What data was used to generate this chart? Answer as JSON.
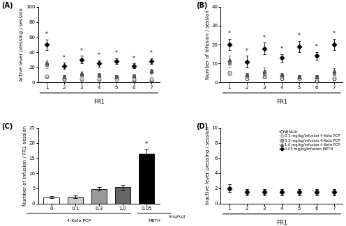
{
  "fr1_sessions": [
    1,
    2,
    3,
    4,
    5,
    6,
    7
  ],
  "panel_A": {
    "ylabel": "Active lever pressing / session",
    "ylim": [
      0,
      100
    ],
    "yticks": [
      0,
      20,
      40,
      60,
      80,
      100
    ],
    "series": [
      {
        "label": "Vehicle",
        "facecolor": "white",
        "edgecolor": "black",
        "linecolor": "black",
        "marker": "o",
        "values": [
          8,
          4,
          4,
          4,
          4,
          3,
          3
        ],
        "errors": [
          1.5,
          0.8,
          0.8,
          0.8,
          0.8,
          0.8,
          0.8
        ],
        "significant": [
          false,
          false,
          false,
          false,
          false,
          false,
          false
        ]
      },
      {
        "label": "0.1 mg/kg/infusion 4-Keto PCP",
        "facecolor": "#cccccc",
        "edgecolor": "#999999",
        "linecolor": "#cccccc",
        "marker": "o",
        "values": [
          9,
          5,
          5,
          5,
          4,
          5,
          5
        ],
        "errors": [
          1.5,
          1,
          1,
          1,
          1,
          1,
          1
        ],
        "significant": [
          false,
          false,
          false,
          false,
          false,
          false,
          false
        ]
      },
      {
        "label": "0.3 mg/kg/infusion 4-Keto PCP",
        "facecolor": "#999999",
        "edgecolor": "#666666",
        "linecolor": "#999999",
        "marker": "s",
        "values": [
          23,
          8,
          10,
          10,
          8,
          9,
          14
        ],
        "errors": [
          4,
          2,
          2,
          2,
          2,
          2,
          3
        ],
        "significant": [
          false,
          false,
          false,
          false,
          false,
          false,
          false
        ]
      },
      {
        "label": "1.0 mg/kg/infusion 4-Keto PCP",
        "facecolor": "#666666",
        "edgecolor": "#333333",
        "linecolor": "#666666",
        "marker": "^",
        "values": [
          26,
          8,
          12,
          10,
          8,
          9,
          15
        ],
        "errors": [
          4,
          2,
          2,
          2,
          2,
          2,
          3
        ],
        "significant": [
          false,
          false,
          false,
          false,
          false,
          false,
          false
        ]
      },
      {
        "label": "0.05 mg/kg/infusion METH",
        "facecolor": "black",
        "edgecolor": "black",
        "linecolor": "black",
        "marker": "D",
        "values": [
          50,
          22,
          30,
          25,
          28,
          22,
          28
        ],
        "errors": [
          7,
          4,
          5,
          4,
          4,
          3,
          4
        ],
        "significant": [
          true,
          true,
          true,
          true,
          true,
          true,
          true
        ]
      }
    ]
  },
  "panel_B": {
    "ylabel": "Number of infusion / session",
    "ylim": [
      0,
      40
    ],
    "yticks": [
      0,
      10,
      20,
      30,
      40
    ],
    "series": [
      {
        "label": "Vehicle",
        "facecolor": "white",
        "edgecolor": "black",
        "linecolor": "black",
        "marker": "o",
        "values": [
          5,
          2,
          3,
          2,
          2,
          1,
          2
        ],
        "errors": [
          1,
          0.5,
          0.5,
          0.5,
          0.5,
          0.3,
          0.5
        ],
        "significant": [
          false,
          false,
          false,
          false,
          false,
          false,
          false
        ]
      },
      {
        "label": "0.1 mg/kg/infusion 4-Keto PCP",
        "facecolor": "#cccccc",
        "edgecolor": "#999999",
        "linecolor": "#cccccc",
        "marker": "o",
        "values": [
          5,
          3,
          4,
          3,
          2,
          2,
          3
        ],
        "errors": [
          1,
          0.8,
          1,
          0.8,
          0.5,
          0.5,
          0.8
        ],
        "significant": [
          false,
          false,
          false,
          false,
          false,
          false,
          false
        ]
      },
      {
        "label": "0.3 mg/kg/infusion 4-Keto PCP",
        "facecolor": "#999999",
        "edgecolor": "#666666",
        "linecolor": "#999999",
        "marker": "s",
        "values": [
          10,
          4,
          5,
          4,
          3,
          3,
          5
        ],
        "errors": [
          2,
          1,
          1.5,
          1,
          0.8,
          0.8,
          1
        ],
        "significant": [
          false,
          false,
          false,
          false,
          false,
          false,
          false
        ]
      },
      {
        "label": "1.0 mg/kg/infusion 4-Keto PCP",
        "facecolor": "#666666",
        "edgecolor": "#333333",
        "linecolor": "#666666",
        "marker": "^",
        "values": [
          12,
          4,
          6,
          4,
          3,
          3,
          6
        ],
        "errors": [
          2,
          1,
          2,
          1,
          0.8,
          0.8,
          1.5
        ],
        "significant": [
          false,
          false,
          false,
          false,
          false,
          false,
          false
        ]
      },
      {
        "label": "0.05 mg/kg/infusion METH",
        "facecolor": "black",
        "edgecolor": "black",
        "linecolor": "black",
        "marker": "D",
        "values": [
          20,
          11,
          18,
          13,
          19,
          14,
          20
        ],
        "errors": [
          3,
          3,
          3,
          2,
          3,
          2,
          3
        ],
        "significant": [
          true,
          true,
          true,
          true,
          true,
          true,
          true
        ]
      }
    ]
  },
  "panel_C": {
    "ylabel": "Number of infusion / FR1 session",
    "ylim": [
      0,
      25
    ],
    "yticks": [
      0,
      5,
      10,
      15,
      20,
      25
    ],
    "categories": [
      "0",
      "0.1",
      "0.3",
      "1.0",
      "0.05"
    ],
    "values": [
      2.0,
      2.2,
      4.8,
      5.3,
      16.5
    ],
    "errors": [
      0.3,
      0.4,
      0.5,
      0.8,
      1.5
    ],
    "bar_colors": [
      "white",
      "#cccccc",
      "#999999",
      "#666666",
      "black"
    ],
    "significant": [
      false,
      false,
      false,
      false,
      true
    ]
  },
  "panel_D": {
    "ylabel": "Inactive lever pressing / session",
    "ylim": [
      0,
      10
    ],
    "yticks": [
      0,
      2,
      4,
      6,
      8,
      10
    ],
    "series": [
      {
        "label": "Vehicle",
        "facecolor": "white",
        "edgecolor": "black",
        "linecolor": "black",
        "marker": "o",
        "values": [
          2.0,
          1.5,
          1.5,
          1.5,
          1.5,
          1.5,
          1.5
        ],
        "errors": [
          0.5,
          0.4,
          0.4,
          0.4,
          0.4,
          0.4,
          0.4
        ],
        "significant": [
          false,
          false,
          false,
          false,
          false,
          false,
          false
        ]
      },
      {
        "label": "0.1 mg/kg/infusion 4-Keto PCP",
        "facecolor": "#cccccc",
        "edgecolor": "#999999",
        "linecolor": "#cccccc",
        "marker": "o",
        "values": [
          2.0,
          1.5,
          1.5,
          1.5,
          1.5,
          1.5,
          1.5
        ],
        "errors": [
          0.5,
          0.4,
          0.4,
          0.4,
          0.4,
          0.4,
          0.4
        ],
        "significant": [
          false,
          false,
          false,
          false,
          false,
          false,
          false
        ]
      },
      {
        "label": "0.3 mg/kg/infusion 4-Keto PCP",
        "facecolor": "#999999",
        "edgecolor": "#666666",
        "linecolor": "#999999",
        "marker": "s",
        "values": [
          2.0,
          1.5,
          1.5,
          1.5,
          1.5,
          1.5,
          1.5
        ],
        "errors": [
          0.5,
          0.4,
          0.4,
          0.4,
          0.4,
          0.4,
          0.4
        ],
        "significant": [
          false,
          false,
          false,
          false,
          false,
          false,
          false
        ]
      },
      {
        "label": "1.0 mg/kg/infusion 4-Keto PCP",
        "facecolor": "#666666",
        "edgecolor": "#333333",
        "linecolor": "#666666",
        "marker": "^",
        "values": [
          2.0,
          1.5,
          1.5,
          1.5,
          1.5,
          1.5,
          1.5
        ],
        "errors": [
          0.5,
          0.4,
          0.4,
          0.4,
          0.4,
          0.4,
          0.4
        ],
        "significant": [
          false,
          false,
          false,
          false,
          false,
          false,
          false
        ]
      },
      {
        "label": "0.05 mg/kg/infusion METH",
        "facecolor": "black",
        "edgecolor": "black",
        "linecolor": "black",
        "marker": "D",
        "values": [
          2.0,
          1.5,
          1.5,
          1.5,
          1.5,
          1.5,
          1.5
        ],
        "errors": [
          0.5,
          0.4,
          0.4,
          0.4,
          0.4,
          0.4,
          0.4
        ],
        "significant": [
          false,
          false,
          false,
          false,
          false,
          false,
          false
        ]
      }
    ]
  },
  "legend_labels": [
    "Vehicle",
    "0.1 mg/kg/infusion 4-Keto PCP",
    "0.3 mg/kg/infusion 4-Keto PCP",
    "1.0 mg/kg/infusion 4-Keto PCP",
    "0.05 mg/kg/infusion METH"
  ],
  "legend_markers": [
    "o",
    "o",
    "s",
    "^",
    "D"
  ],
  "legend_facecolors": [
    "white",
    "#cccccc",
    "#999999",
    "#666666",
    "black"
  ],
  "legend_edgecolors": [
    "black",
    "#999999",
    "#666666",
    "#333333",
    "black"
  ],
  "legend_linecolors": [
    "black",
    "#cccccc",
    "#999999",
    "#666666",
    "black"
  ]
}
